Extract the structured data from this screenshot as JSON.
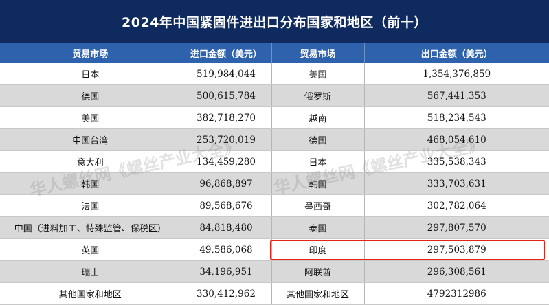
{
  "title": "2024年中国紧固件进出口分布国家和地区（前十）",
  "headers": [
    "贸易市场",
    "进口金额（美元）",
    "贸易市场",
    "出口金额（美元）"
  ],
  "rows": [
    {
      "import_market": "日本",
      "import_amount": "519,984,044",
      "export_market": "美国",
      "export_amount": "1,354,376,859"
    },
    {
      "import_market": "德国",
      "import_amount": "500,615,784",
      "export_market": "俄罗斯",
      "export_amount": "567,441,353"
    },
    {
      "import_market": "美国",
      "import_amount": "382,718,270",
      "export_market": "越南",
      "export_amount": "518,234,543"
    },
    {
      "import_market": "中国台湾",
      "import_amount": "253,720,019",
      "export_market": "德国",
      "export_amount": "468,054,610"
    },
    {
      "import_market": "意大利",
      "import_amount": "134,459,280",
      "export_market": "日本",
      "export_amount": "335,538,343"
    },
    {
      "import_market": "韩国",
      "import_amount": "96,868,897",
      "export_market": "韩国",
      "export_amount": "333,703,631"
    },
    {
      "import_market": "法国",
      "import_amount": "89,568,676",
      "export_market": "墨西哥",
      "export_amount": "302,782,064"
    },
    {
      "import_market": "中国（进料加工、特殊监管、保税区）",
      "import_amount": "84,818,480",
      "export_market": "泰国",
      "export_amount": "297,807,570"
    },
    {
      "import_market": "英国",
      "import_amount": "49,586,068",
      "export_market": "印度",
      "export_amount": "297,503,879"
    },
    {
      "import_market": "瑞士",
      "import_amount": "34,196,951",
      "export_market": "阿联酋",
      "export_amount": "296,308,561"
    },
    {
      "import_market": "其他国家和地区",
      "import_amount": "330,412,962",
      "export_market": "其他国家和地区",
      "export_amount": "4792312986"
    }
  ],
  "watermarks": [
    "华人螺丝网《螺丝产业大全》",
    "华人螺丝网《螺丝产业大全》"
  ],
  "colors": {
    "title_bg": "#0f2a5e",
    "header_bg": "#2f62ad",
    "stripe": "#d9d9d9",
    "highlight": "#e2231a"
  }
}
